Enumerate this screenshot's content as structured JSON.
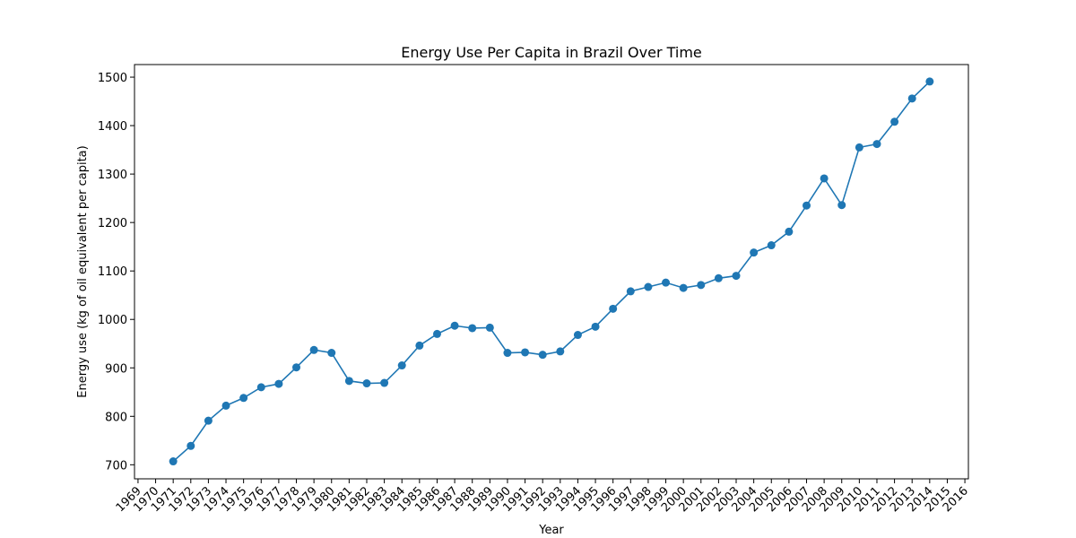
{
  "chart_data": {
    "type": "line",
    "title": "Energy Use Per Capita in Brazil Over Time",
    "xlabel": "Year",
    "ylabel": "Energy use (kg of oil equivalent per capita)",
    "xlim": [
      1968.8,
      2016.2
    ],
    "ylim": [
      671,
      1526
    ],
    "x_ticks": [
      1969,
      1970,
      1971,
      1972,
      1973,
      1974,
      1975,
      1976,
      1977,
      1978,
      1979,
      1980,
      1981,
      1982,
      1983,
      1984,
      1985,
      1986,
      1987,
      1988,
      1989,
      1990,
      1991,
      1992,
      1993,
      1994,
      1995,
      1996,
      1997,
      1998,
      1999,
      2000,
      2001,
      2002,
      2003,
      2004,
      2005,
      2006,
      2007,
      2008,
      2009,
      2010,
      2011,
      2012,
      2013,
      2014,
      2015,
      2016
    ],
    "y_ticks": [
      700,
      800,
      900,
      1000,
      1100,
      1200,
      1300,
      1400,
      1500
    ],
    "grid": false,
    "color": "#1f77b4",
    "series": [
      {
        "x": [
          1971,
          1972,
          1973,
          1974,
          1975,
          1976,
          1977,
          1978,
          1979,
          1980,
          1981,
          1982,
          1983,
          1984,
          1985,
          1986,
          1987,
          1988,
          1989,
          1990,
          1991,
          1992,
          1993,
          1994,
          1995,
          1996,
          1997,
          1998,
          1999,
          2000,
          2001,
          2002,
          2003,
          2004,
          2005,
          2006,
          2007,
          2008,
          2009,
          2010,
          2011,
          2012,
          2013,
          2014
        ],
        "values": [
          707,
          739,
          791,
          822,
          838,
          860,
          867,
          901,
          937,
          931,
          873,
          868,
          869,
          905,
          946,
          970,
          987,
          982,
          983,
          931,
          932,
          927,
          934,
          968,
          985,
          1022,
          1058,
          1067,
          1076,
          1065,
          1071,
          1085,
          1090,
          1138,
          1153,
          1181,
          1235,
          1291,
          1236,
          1355,
          1362,
          1408,
          1456,
          1491
        ]
      }
    ]
  }
}
